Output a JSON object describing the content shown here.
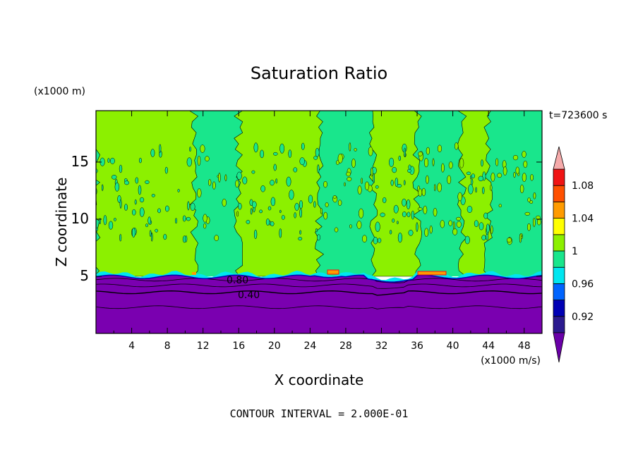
{
  "chart_data": {
    "type": "heatmap",
    "title": "Saturation Ratio",
    "xlabel": "X coordinate",
    "ylabel": "Z coordinate",
    "x_unit": "(x1000 m/s)",
    "y_unit": "(x1000 m)",
    "time_label": "t=723600 s",
    "footer": "CONTOUR INTERVAL = 2.000E-01",
    "xlim": [
      0,
      50
    ],
    "ylim": [
      0,
      19.5
    ],
    "x_ticks": [
      "4",
      "8",
      "12",
      "16",
      "20",
      "24",
      "28",
      "32",
      "36",
      "40",
      "44",
      "48"
    ],
    "y_ticks": [
      "5",
      "10",
      "15"
    ],
    "contour_labels": [
      "0.80",
      "0.40"
    ],
    "colorbar": {
      "levels": [
        "1.08",
        "1.04",
        "1",
        "0.96",
        "0.92"
      ],
      "colors": [
        "#6a00a8",
        "#2b1a8f",
        "#0000b4",
        "#0064ff",
        "#00e6f0",
        "#19e68c",
        "#8cf000",
        "#ffff00",
        "#ff9b00",
        "#ff5000",
        "#f01414",
        "#f5aaaa"
      ]
    },
    "layers": [
      {
        "name": "subsaturated layer",
        "z_top": 5.0,
        "color": "#7a00b0"
      },
      {
        "name": "near-saturation mixed region",
        "z_bottom": 5.0,
        "z_top": 19.5,
        "colors": [
          "#19e68c",
          "#8cf000"
        ]
      }
    ],
    "supersat_bands_x": [
      [
        0,
        11
      ],
      [
        16,
        25
      ],
      [
        31,
        36
      ],
      [
        41,
        44
      ]
    ],
    "subsat_bands_x": [
      [
        11,
        16
      ],
      [
        25,
        31
      ],
      [
        36,
        41
      ],
      [
        44,
        50
      ]
    ]
  }
}
